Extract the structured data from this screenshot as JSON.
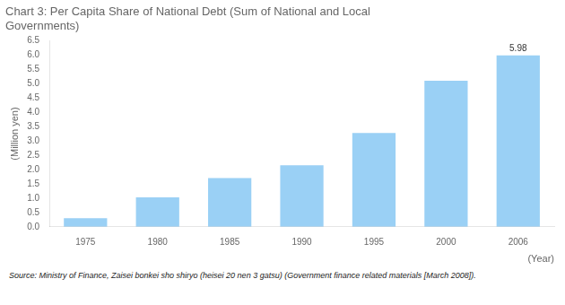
{
  "chart_data": {
    "type": "bar",
    "title": [
      "Chart 3: Per Capita Share of National Debt (Sum of National and Local",
      "Governments)"
    ],
    "ylabel": "(Million yen)",
    "xlabel": "(Year)",
    "categories": [
      "1975",
      "1980",
      "1985",
      "1990",
      "1995",
      "2000",
      "2006"
    ],
    "values": [
      0.3,
      1.03,
      1.7,
      2.15,
      3.27,
      5.1,
      5.98
    ],
    "ylim": [
      0,
      6.5
    ],
    "yticks": [
      {
        "value": 0.0,
        "label": "0.0"
      },
      0.5,
      {
        "value": 1.0,
        "label": "1.0"
      },
      1.5,
      {
        "value": 2.0,
        "label": "2.0"
      },
      2.5,
      {
        "value": 3.0,
        "label": "3.0"
      },
      3.5,
      {
        "value": 4.0,
        "label": "4.0"
      },
      4.5,
      {
        "value": 5.0,
        "label": "5.0"
      },
      5.5,
      {
        "value": 6.0,
        "label": "6.0"
      },
      6.5
    ],
    "annotations": [
      {
        "text": "5.98",
        "x": "2006",
        "y": 5.98
      }
    ],
    "source": "Source: Ministry of Finance, Zaisei bonkei sho shiryo (heisei 20 nen 3 gatsu) (Government finance related materials [March 2008]).",
    "grid": false
  }
}
